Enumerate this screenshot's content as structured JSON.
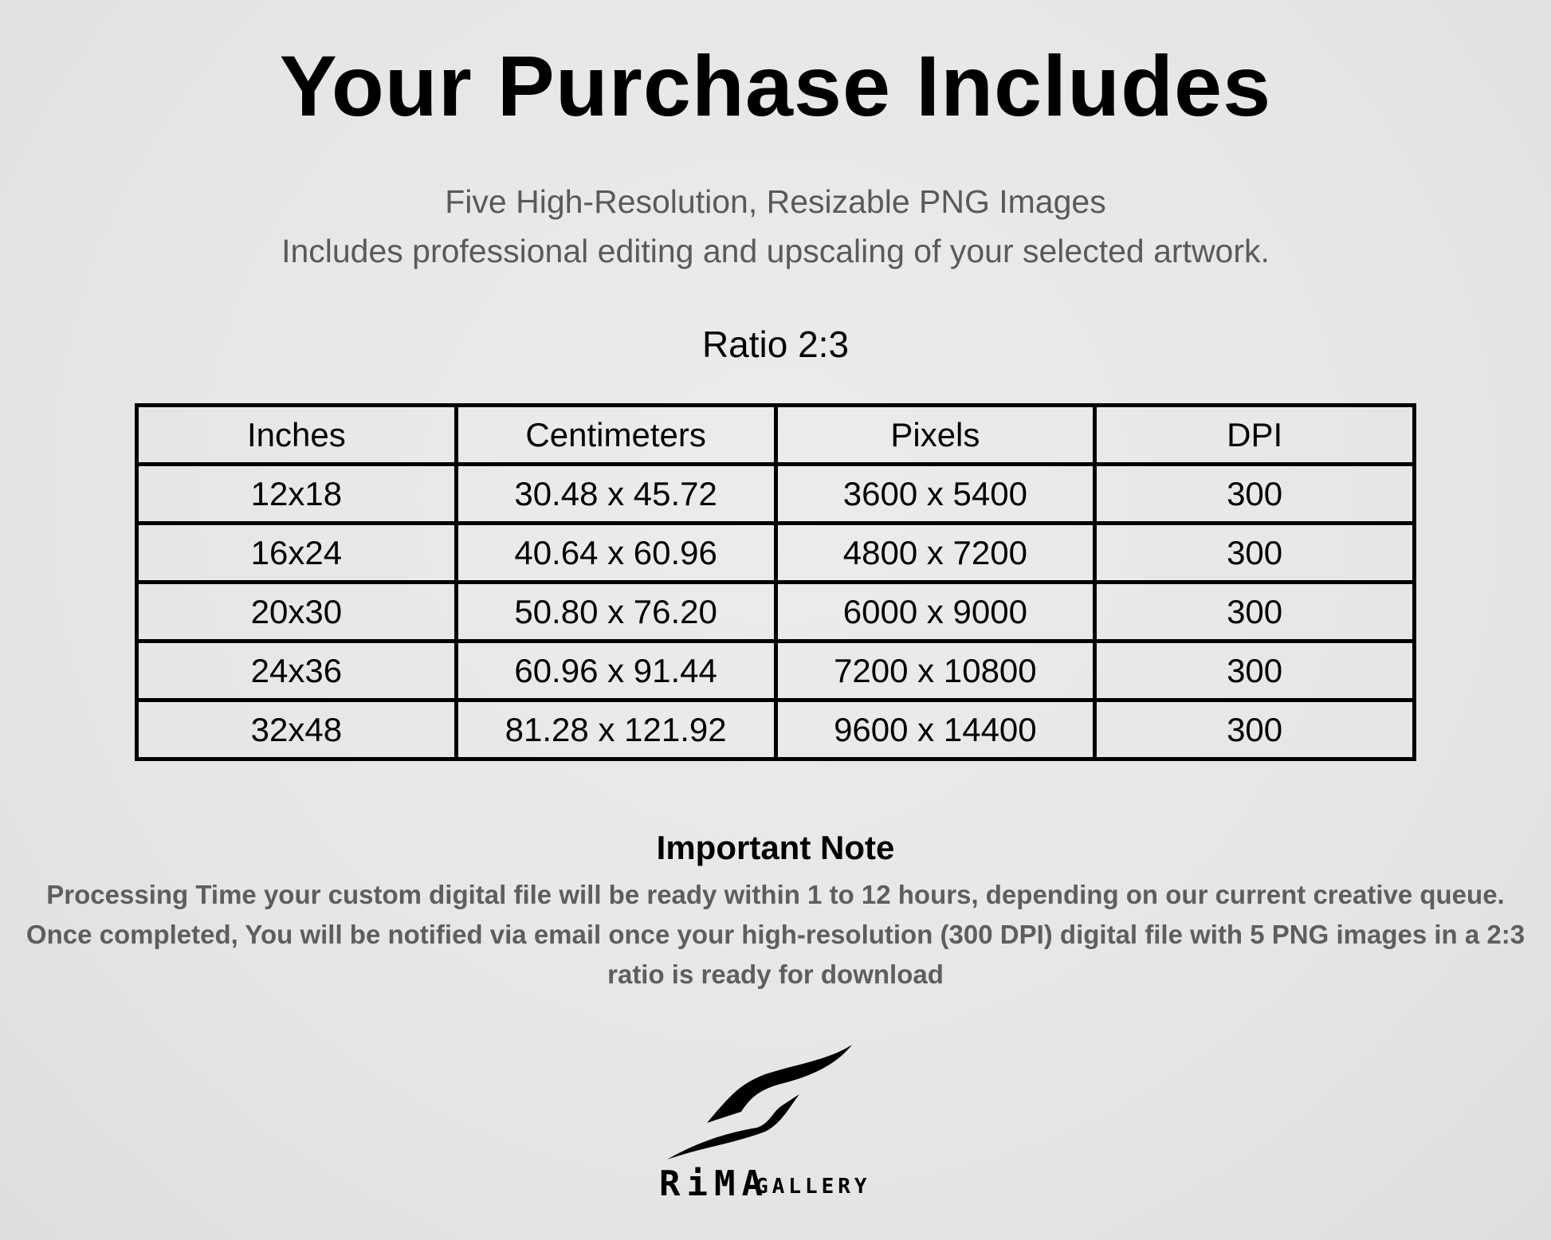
{
  "title": "Your Purchase Includes",
  "subtitle_line1": "Five High-Resolution, Resizable PNG Images",
  "subtitle_line2": "Includes professional editing and upscaling of your selected artwork.",
  "ratio_label": "Ratio 2:3",
  "table": {
    "headers": [
      "Inches",
      "Centimeters",
      "Pixels",
      "DPI"
    ],
    "rows": [
      [
        "12x18",
        "30.48 x 45.72",
        "3600 x 5400",
        "300"
      ],
      [
        "16x24",
        "40.64 x 60.96",
        "4800 x 7200",
        "300"
      ],
      [
        "20x30",
        "50.80 x 76.20",
        "6000 x 9000",
        "300"
      ],
      [
        "24x36",
        "60.96 x 91.44",
        "7200 x 10800",
        "300"
      ],
      [
        "32x48",
        "81.28 x 121.92",
        "9600 x 14400",
        "300"
      ]
    ]
  },
  "note": {
    "title": "Important Note",
    "body": "Processing Time your custom digital file will be ready within 1 to 12 hours, depending on our current creative queue. Once completed, You will be notified via email once your high-resolution (300 DPI) digital file with 5 PNG images in a 2:3 ratio is ready for download"
  },
  "logo": {
    "text_main": "RiMA",
    "text_secondary": "GALLERY"
  }
}
